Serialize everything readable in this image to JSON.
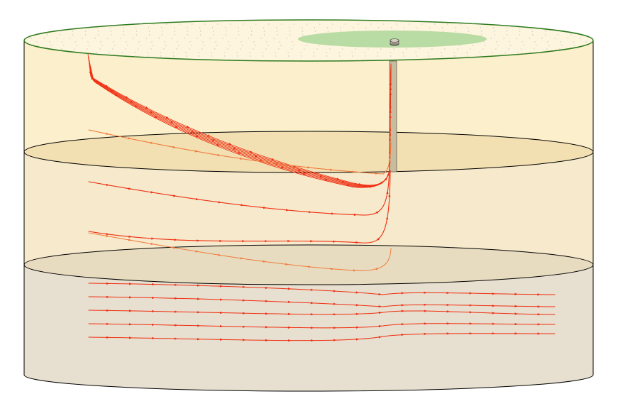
{
  "colors": {
    "background": "#ffffff",
    "layer_top_fill": "#fcefcb",
    "layer_mid_fill": "#f6e9cc",
    "layer_bottom_fill": "#e7dfcf",
    "surface_fill": "#fdf5dd",
    "surface_outline": "#2d7a1e",
    "capture_zone_fill": "#b9dba4",
    "interface_top_fill": "#f2e0b3",
    "interface_bottom_fill": "#e8dcc0",
    "well_fill": "#c7bc9f",
    "outline": "#000000",
    "flowline": "#ef2f12",
    "flowline_light": "#f07a3c",
    "grid_dots": "#c8c8c8"
  },
  "icons": {
    "well_head": "well-head-icon",
    "flow_arrow": "flow-arrow-icon"
  }
}
